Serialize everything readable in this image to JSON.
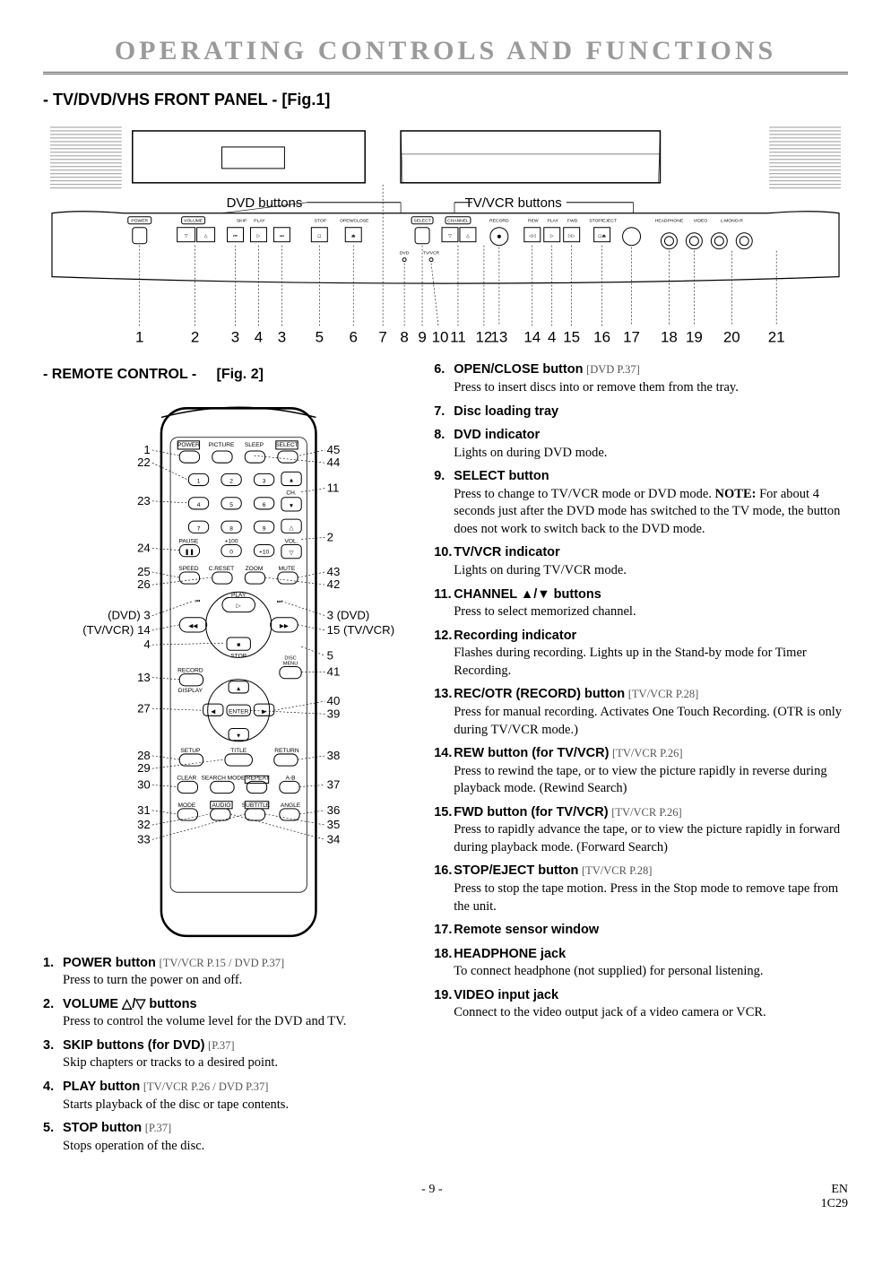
{
  "main_title": "OPERATING CONTROLS AND FUNCTIONS",
  "panel_title": "- TV/DVD/VHS FRONT PANEL -  [Fig.1]",
  "remote_title_left": "- REMOTE CONTROL -",
  "remote_title_right": "[Fig. 2]",
  "fig1": {
    "group_labels": {
      "dvd": "DVD buttons",
      "tvvcr": "TV/VCR buttons"
    },
    "btn_labels": {
      "power": "POWER",
      "volume": "VOLUME",
      "skip": "SKIP",
      "play": "PLAY",
      "stop": "STOP",
      "openclose": "OPEN/CLOSE",
      "select": "SELECT",
      "channel": "CHANNEL",
      "record": "RECORD",
      "rew": "REW",
      "fwd": "FWD",
      "stopeject": "STOP/EJECT",
      "headphone": "HEADPHONE",
      "video": "VIDEO",
      "lmono": "L-MONO-R"
    },
    "callouts": [
      "1",
      "2",
      "3",
      "4",
      "3",
      "5",
      "6",
      "7",
      "8",
      "9",
      "10",
      "11",
      "12",
      "13",
      "14",
      "4",
      "15",
      "16",
      "17",
      "18",
      "19",
      "20",
      "21"
    ]
  },
  "remote_labels_left": [
    "1",
    "22",
    "23",
    "24",
    "25",
    "26",
    "(DVD) 3",
    "(TV/VCR) 14",
    "4",
    "13",
    "27",
    "28",
    "29",
    "30",
    "31",
    "32",
    "33"
  ],
  "remote_labels_right": [
    "45",
    "44",
    "11",
    "2",
    "43",
    "42",
    "3 (DVD)",
    "15 (TV/VCR)",
    "5",
    "41",
    "40",
    "39",
    "38",
    "37",
    "36",
    "35",
    "34"
  ],
  "remote_btn_text": {
    "power": "POWER",
    "picture": "PICTURE",
    "sleep": "SLEEP",
    "select": "SELECT",
    "ch": "CH.",
    "pause": "PAUSE",
    "vol": "VOL.",
    "plus100": "+100",
    "plus10": "+10",
    "speed": "SPEED",
    "creset": "C.RESET",
    "zoom": "ZOOM",
    "mute": "MUTE",
    "play": "PLAY",
    "stop": "STOP",
    "disc_menu": "DISC\nMENU",
    "record": "RECORD",
    "display": "DISPLAY",
    "enter": "ENTER",
    "setup": "SETUP",
    "title": "TITLE",
    "return": "RETURN",
    "clear": "CLEAR",
    "searchmode": "SEARCH MODE",
    "repeat": "REPEAT",
    "ab": "A-B",
    "mode": "MODE",
    "audio": "AUDIO",
    "subtitle": "SUBTITLE",
    "angle": "ANGLE"
  },
  "items_left": [
    {
      "num": "1.",
      "title": "POWER button",
      "ref": "[TV/VCR P.15 / DVD P.37]",
      "desc": "Press to turn the power on and off."
    },
    {
      "num": "2.",
      "title": "VOLUME △/▽ buttons",
      "ref": "",
      "desc": "Press to control the volume level for the DVD and TV."
    },
    {
      "num": "3.",
      "title": "SKIP buttons (for DVD)",
      "ref": "[P.37]",
      "desc": "Skip chapters or tracks to a desired point."
    },
    {
      "num": "4.",
      "title": "PLAY button",
      "ref": "[TV/VCR P.26 / DVD P.37]",
      "desc": "Starts playback of the disc or tape contents."
    },
    {
      "num": "5.",
      "title": "STOP button",
      "ref": "[P.37]",
      "desc": "Stops operation of the disc."
    }
  ],
  "items_right": [
    {
      "num": "6.",
      "title": "OPEN/CLOSE button",
      "ref": "[DVD P.37]",
      "desc": "Press to insert discs into or remove them from the tray."
    },
    {
      "num": "7.",
      "title": "Disc loading tray",
      "ref": "",
      "desc": ""
    },
    {
      "num": "8.",
      "title": "DVD indicator",
      "ref": "",
      "desc": "Lights on during DVD mode."
    },
    {
      "num": "9.",
      "title": "SELECT button",
      "ref": "",
      "desc": "Press to change to TV/VCR mode or DVD mode. ",
      "note": "NOTE:",
      "desc2": " For about 4 seconds just after the DVD mode has switched to the TV mode, the button does not work to switch back to the DVD mode."
    },
    {
      "num": "10.",
      "title": "TV/VCR indicator",
      "ref": "",
      "desc": "Lights on during TV/VCR mode."
    },
    {
      "num": "11.",
      "title": "CHANNEL ▲/▼ buttons",
      "ref": "",
      "desc": "Press to select memorized channel."
    },
    {
      "num": "12.",
      "title": "Recording indicator",
      "ref": "",
      "desc": "Flashes during recording. Lights up in the Stand-by mode for Timer Recording."
    },
    {
      "num": "13.",
      "title": "REC/OTR (RECORD) button",
      "ref": "[TV/VCR P.28]",
      "desc": "Press for manual recording. Activates One Touch Recording. (OTR is only during TV/VCR mode.)"
    },
    {
      "num": "14.",
      "title": "REW button (for TV/VCR)",
      "ref": "[TV/VCR P.26]",
      "desc": "Press to rewind the tape, or to view the picture rapidly in reverse during playback mode. (Rewind Search)"
    },
    {
      "num": "15.",
      "title": "FWD button (for TV/VCR)",
      "ref": "[TV/VCR P.26]",
      "desc": "Press to rapidly advance the tape, or to view the picture rapidly in forward during playback mode. (Forward Search)"
    },
    {
      "num": "16.",
      "title": "STOP/EJECT button",
      "ref": "[TV/VCR P.28]",
      "desc": "Press to stop the tape motion. Press in the Stop mode to remove tape from the unit."
    },
    {
      "num": "17.",
      "title": "Remote sensor window",
      "ref": "",
      "desc": ""
    },
    {
      "num": "18.",
      "title": "HEADPHONE jack",
      "ref": "",
      "desc": "To connect headphone (not supplied) for personal listening."
    },
    {
      "num": "19.",
      "title": "VIDEO input jack",
      "ref": "",
      "desc": "Connect to the video output jack of a video camera or VCR."
    }
  ],
  "footer": {
    "page": "- 9 -",
    "lang": "EN",
    "code": "1C29"
  },
  "colors": {
    "title_gray": "#9a9a9a",
    "line": "#000000",
    "light": "#bdbdbd"
  }
}
